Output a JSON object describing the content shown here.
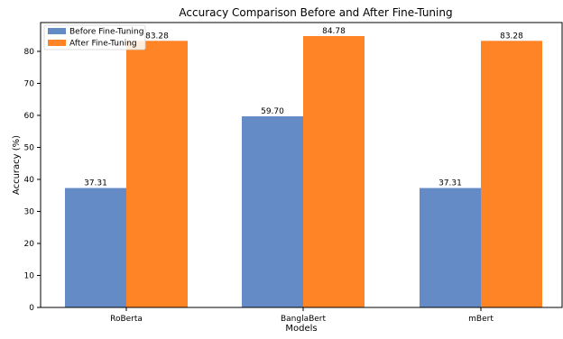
{
  "chart_data": {
    "type": "bar",
    "title": "Accuracy Comparison Before and After Fine-Tuning",
    "xlabel": "Models",
    "ylabel": "Accuracy (%)",
    "categories": [
      "RoBerta",
      "BanglaBert",
      "mBert"
    ],
    "series": [
      {
        "name": "Before Fine-Tuning",
        "color": "#648bc6",
        "values": [
          37.31,
          59.7,
          37.31
        ],
        "labels": [
          "37.31",
          "59.70",
          "37.31"
        ]
      },
      {
        "name": "After Fine-Tuning",
        "color": "#ff8426",
        "values": [
          83.28,
          84.78,
          83.28
        ],
        "labels": [
          "83.28",
          "84.78",
          "83.28"
        ]
      }
    ],
    "ylim": [
      0,
      89
    ],
    "yticks": [
      0,
      10,
      20,
      30,
      40,
      50,
      60,
      70,
      80
    ],
    "ytick_labels": [
      "0",
      "10",
      "20",
      "30",
      "40",
      "50",
      "60",
      "70",
      "80"
    ],
    "grid": false,
    "legend_position": "top-left"
  }
}
